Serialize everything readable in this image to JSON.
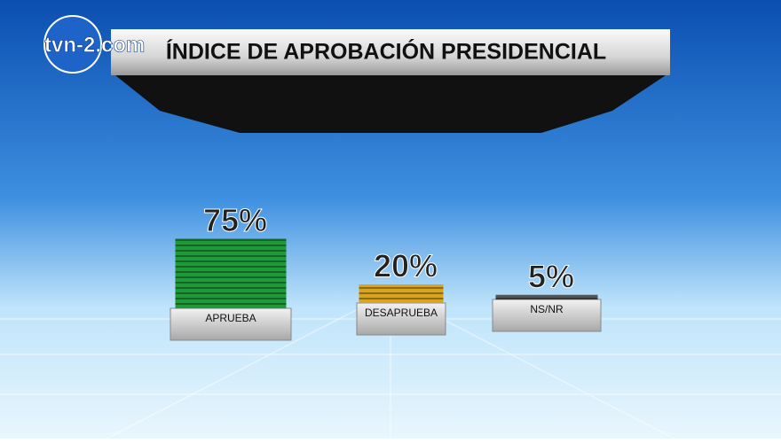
{
  "brand": "tvn-2.com",
  "chart_data": {
    "type": "bar",
    "title": "ÍNDICE DE APROBACIÓN PRESIDENCIAL",
    "categories": [
      "APRUEBA",
      "DESAPRUEBA",
      "NS/NR"
    ],
    "values": [
      75,
      20,
      5
    ],
    "value_labels": [
      "75%",
      "20%",
      "5%"
    ],
    "colors": [
      "#1f9a3a",
      "#d9a520",
      "#555555"
    ]
  }
}
